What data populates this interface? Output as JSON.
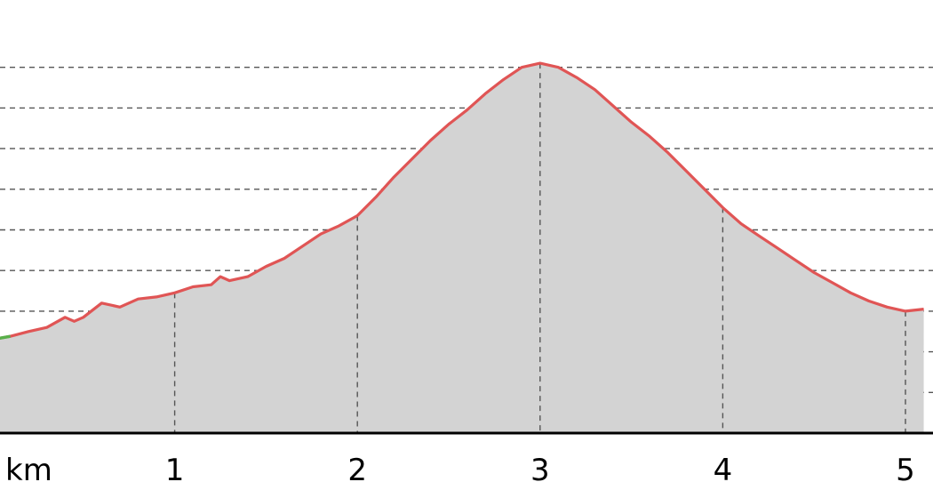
{
  "chart_data": {
    "type": "area",
    "title": "",
    "xlabel": "km",
    "ylabel": "",
    "x_unit_label": "km",
    "xlim": [
      0,
      5.1
    ],
    "ylim": [
      0,
      10
    ],
    "x_ticks": [
      {
        "value": 1,
        "label": "1"
      },
      {
        "value": 2,
        "label": "2"
      },
      {
        "value": 3,
        "label": "3"
      },
      {
        "value": 4,
        "label": "4"
      },
      {
        "value": 5,
        "label": "5"
      }
    ],
    "y_gridlines": [
      1,
      2,
      3,
      4,
      5,
      6,
      7,
      8,
      9
    ],
    "grid": true,
    "legend": "none",
    "series": [
      {
        "fill_color": "#d3d3d3",
        "line_color": "#e05555",
        "highlight_color": "#58b04a",
        "highlight_range": [
          0,
          0.12
        ],
        "x": [
          0,
          0.1,
          0.2,
          0.3,
          0.4,
          0.45,
          0.5,
          0.6,
          0.7,
          0.8,
          0.9,
          1.0,
          1.1,
          1.2,
          1.25,
          1.3,
          1.4,
          1.5,
          1.6,
          1.7,
          1.8,
          1.9,
          2.0,
          2.1,
          2.2,
          2.3,
          2.4,
          2.5,
          2.6,
          2.7,
          2.8,
          2.9,
          3.0,
          3.1,
          3.2,
          3.3,
          3.4,
          3.5,
          3.6,
          3.7,
          3.8,
          3.9,
          4.0,
          4.1,
          4.2,
          4.3,
          4.4,
          4.5,
          4.6,
          4.7,
          4.8,
          4.9,
          5.0,
          5.1
        ],
        "y": [
          2.3,
          2.38,
          2.5,
          2.6,
          2.85,
          2.75,
          2.85,
          3.2,
          3.1,
          3.3,
          3.35,
          3.45,
          3.6,
          3.65,
          3.85,
          3.75,
          3.85,
          4.1,
          4.3,
          4.6,
          4.9,
          5.1,
          5.35,
          5.8,
          6.3,
          6.75,
          7.2,
          7.6,
          7.95,
          8.35,
          8.7,
          9.0,
          9.1,
          9.0,
          8.75,
          8.45,
          8.05,
          7.65,
          7.3,
          6.9,
          6.45,
          6.0,
          5.55,
          5.15,
          4.85,
          4.55,
          4.25,
          3.95,
          3.7,
          3.45,
          3.25,
          3.1,
          3.0,
          3.05
        ]
      }
    ]
  }
}
